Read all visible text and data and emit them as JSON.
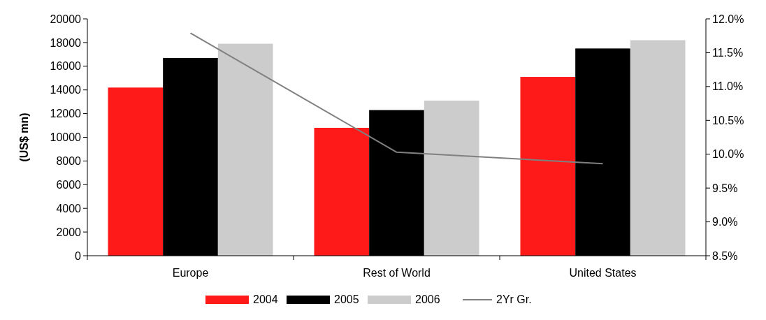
{
  "chart_data": {
    "type": "bar",
    "ylabel": "(US$ mn)",
    "categories": [
      "Europe",
      "Rest of World",
      "United States"
    ],
    "series": [
      {
        "name": "2004",
        "color": "#ff1a1a",
        "values": [
          14200,
          10800,
          15100
        ]
      },
      {
        "name": "2005",
        "color": "#000000",
        "values": [
          16700,
          12300,
          17500
        ]
      },
      {
        "name": "2006",
        "color": "#cccccc",
        "values": [
          17900,
          13100,
          18200
        ]
      },
      {
        "name": "2Yr Gr.",
        "type": "line",
        "axis": "y2",
        "color": "#808080",
        "values": [
          11.79,
          10.03,
          9.86
        ]
      }
    ],
    "ylim": [
      0,
      20000
    ],
    "yticks": [
      0,
      2000,
      4000,
      6000,
      8000,
      10000,
      12000,
      14000,
      16000,
      18000,
      20000
    ],
    "y2lim": [
      8.5,
      12
    ],
    "y2ticks": [
      {
        "value": 8.5,
        "label": "8.5%"
      },
      {
        "value": 9,
        "label": "9.0%"
      },
      {
        "value": 9.5,
        "label": "9.5%"
      },
      {
        "value": 10,
        "label": "10.0%"
      },
      {
        "value": 10.5,
        "label": "10.5%"
      },
      {
        "value": 11,
        "label": "11.0%"
      },
      {
        "value": 11.5,
        "label": "11.5%"
      },
      {
        "value": 12,
        "label": "12.0%"
      }
    ],
    "legend": "bottom",
    "grid": false
  }
}
